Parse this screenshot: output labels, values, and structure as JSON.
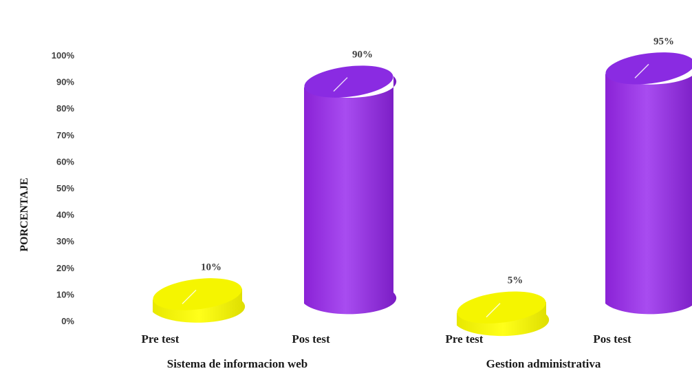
{
  "chart_data": {
    "type": "bar",
    "title": "",
    "ylabel": "PORCENTAJE",
    "ylim": [
      0,
      100
    ],
    "yticks": [
      "0%",
      "10%",
      "20%",
      "30%",
      "40%",
      "50%",
      "60%",
      "70%",
      "80%",
      "90%",
      "100%"
    ],
    "groups": [
      {
        "name": "Sistema de informacion web",
        "bars": [
          {
            "category": "Pre test",
            "value": 10,
            "label": "10%"
          },
          {
            "category": "Pos test",
            "value": 90,
            "label": "90%"
          }
        ]
      },
      {
        "name": "Gestion administrativa",
        "bars": [
          {
            "category": "Pre test",
            "value": 5,
            "label": "5%"
          },
          {
            "category": "Pos test",
            "value": 95,
            "label": "95%"
          }
        ]
      }
    ],
    "colors": {
      "pre_test": "#f5f500",
      "pos_test": "#8a2be2"
    },
    "grid": false,
    "legend": "none"
  }
}
